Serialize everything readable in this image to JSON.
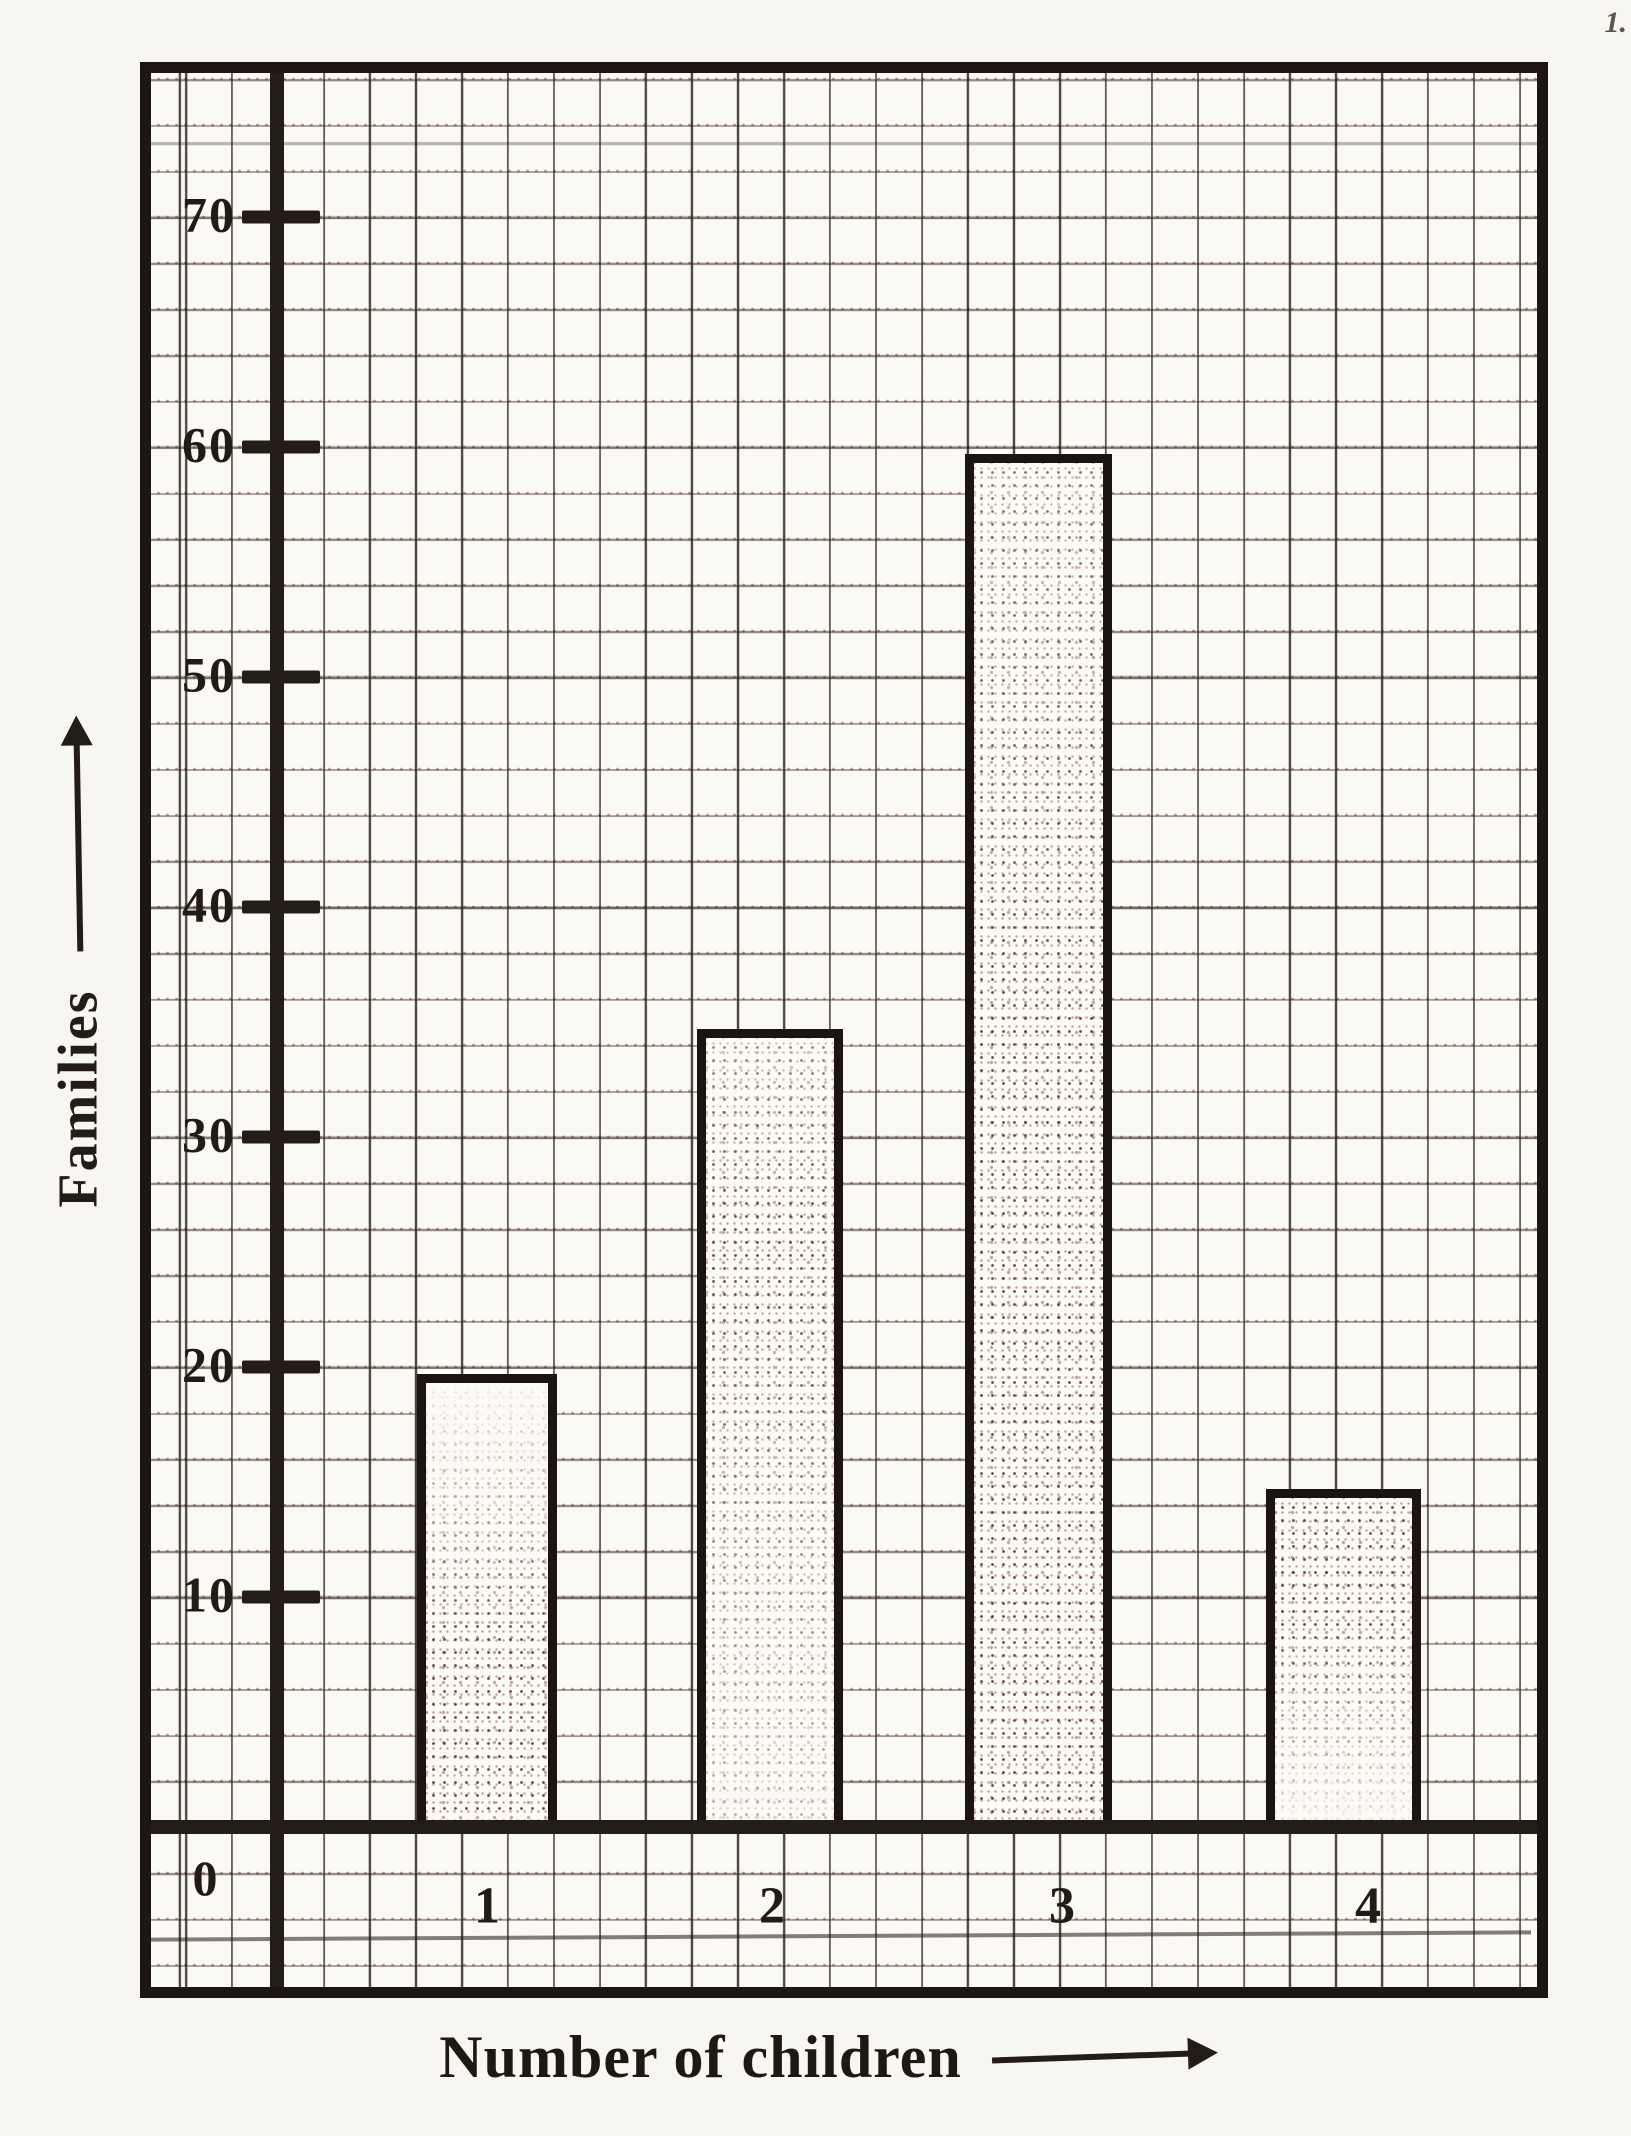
{
  "page": {
    "corner_mark": "1."
  },
  "chart_data": {
    "type": "bar",
    "title": "",
    "xlabel": "Number of children",
    "ylabel": "Families",
    "categories": [
      "1",
      "2",
      "3",
      "4"
    ],
    "values": [
      20,
      35,
      60,
      15
    ],
    "yticks": [
      70,
      60,
      50,
      40,
      30,
      20,
      10
    ],
    "origin_label": "0",
    "ylim": [
      0,
      75
    ],
    "grid": "graph-paper",
    "legend_position": "none",
    "bar_fill": "#fcfaf5",
    "ink_color": "#241c16",
    "grid_dot_color": "#ac5c4e",
    "axis_arrow": "⟶"
  }
}
